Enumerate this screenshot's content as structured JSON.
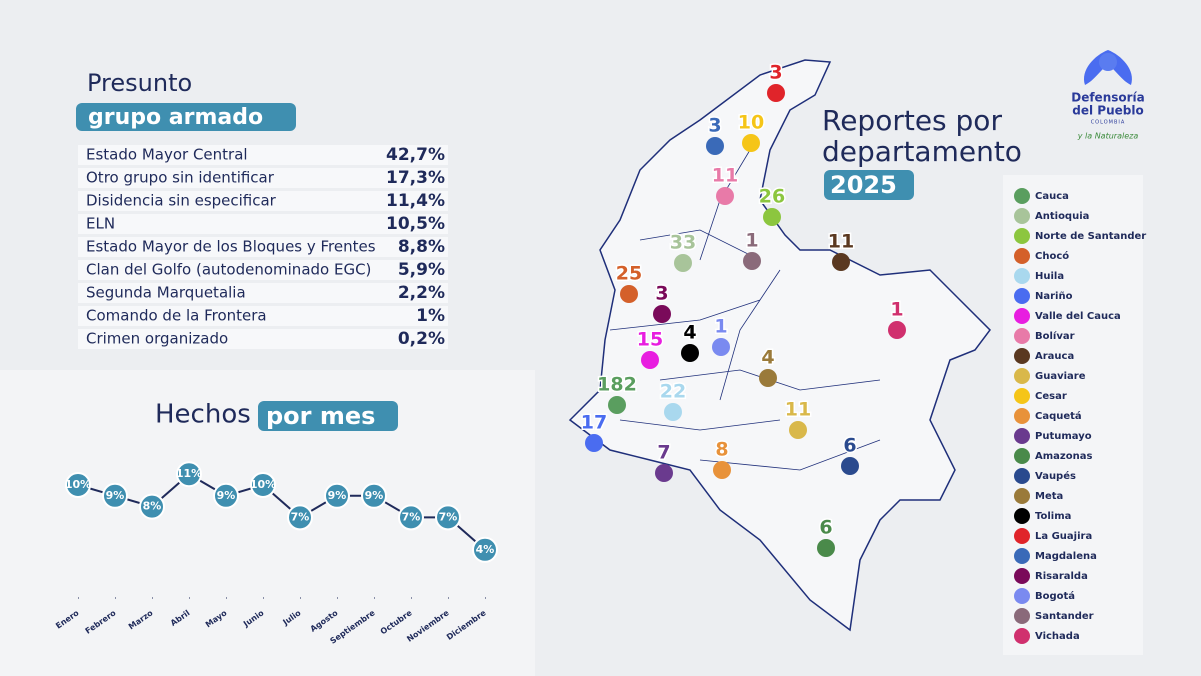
{
  "header": {
    "logo_line1": "Defensoría",
    "logo_line2": "del Pueblo",
    "logo_country": "COLOMBIA",
    "logo_tagline": "y la Naturaleza"
  },
  "chart_data": [
    {
      "type": "table",
      "title": "Presunto",
      "title_highlight": "grupo armado",
      "rows": [
        [
          "Estado Mayor Central",
          "42,7%"
        ],
        [
          "Otro grupo sin identificar",
          "17,3%"
        ],
        [
          "Disidencia sin especificar",
          "11,4%"
        ],
        [
          "ELN",
          "10,5%"
        ],
        [
          "Estado Mayor de los Bloques y Frentes",
          "8,8%"
        ],
        [
          "Clan del Golfo (autodenominado EGC)",
          "5,9%"
        ],
        [
          "Segunda Marquetalia",
          "2,2%"
        ],
        [
          "Comando de la Frontera",
          "1%"
        ],
        [
          "Crimen organizado",
          "0,2%"
        ]
      ]
    },
    {
      "type": "line",
      "title": "Hechos",
      "title_highlight": "por mes",
      "color": "#3f8fb0",
      "categories": [
        "Enero",
        "Febrero",
        "Marzo",
        "Abril",
        "Mayo",
        "Junio",
        "Julio",
        "Agosto",
        "Septiembre",
        "Octubre",
        "Noviembre",
        "Diciembre"
      ],
      "values": [
        10,
        9,
        8,
        11,
        9,
        10,
        7,
        9,
        9,
        7,
        7,
        4
      ],
      "value_labels": [
        "10%",
        "9%",
        "8%",
        "11%",
        "9%",
        "10%",
        "7%",
        "9%",
        "9%",
        "7%",
        "7%",
        "4%"
      ]
    },
    {
      "type": "map",
      "title": "Reportes por departamento",
      "subtitle": "2025",
      "categories": [
        "Cauca",
        "Antioquia",
        "Norte de Santander",
        "Chocó",
        "Huila",
        "Nariño",
        "Valle del Cauca",
        "Bolívar",
        "Arauca",
        "Guaviare",
        "Cesar",
        "Caquetá",
        "Putumayo",
        "Amazonas",
        "Vaupés",
        "Meta",
        "Tolima",
        "La Guajira",
        "Magdalena",
        "Risaralda",
        "Bogotá",
        "Santander",
        "Vichada"
      ],
      "values": [
        182,
        33,
        26,
        25,
        22,
        17,
        15,
        11,
        11,
        11,
        10,
        8,
        7,
        6,
        6,
        4,
        4,
        3,
        3,
        3,
        1,
        1,
        1
      ],
      "colors": [
        "#5a9e5f",
        "#a8c49a",
        "#8cc63f",
        "#d4602a",
        "#a9d8ee",
        "#4a6cf0",
        "#e81ee0",
        "#e87aa8",
        "#5a3820",
        "#d9b84a",
        "#f5c518",
        "#e8923a",
        "#6a3a8e",
        "#4a8a4a",
        "#2a4a8e",
        "#9a7a3a",
        "#000000",
        "#e0242a",
        "#3a6ab8",
        "#7a0a5a",
        "#7a8af0",
        "#8a6a7a",
        "#d0306e"
      ]
    }
  ]
}
